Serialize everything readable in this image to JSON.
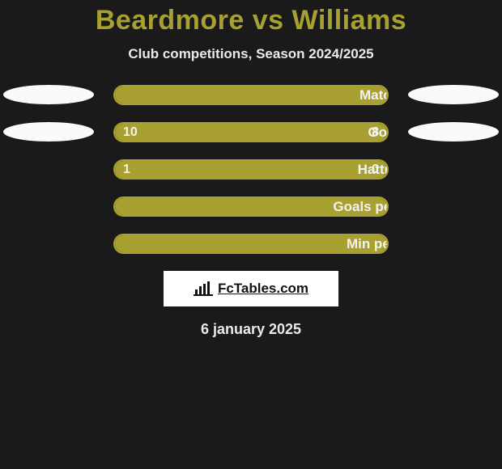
{
  "title": "Beardmore vs Williams",
  "subtitle": "Club competitions, Season 2024/2025",
  "date": "6 january 2025",
  "brand": "FcTables.com",
  "colors": {
    "accent": "#a8a030",
    "background": "#1a1a1a",
    "ellipse": "#fafafa",
    "brand_box_bg": "#ffffff",
    "text_light": "#eaeaea"
  },
  "rows": [
    {
      "label": "Matches",
      "left_pct": 100,
      "right_pct": 0,
      "left_val": "",
      "right_val": "",
      "show_ellipses": true
    },
    {
      "label": "Goals",
      "left_pct": 56,
      "right_pct": 44,
      "left_val": "10",
      "right_val": "8",
      "show_ellipses": true
    },
    {
      "label": "Hattricks",
      "left_pct": 77,
      "right_pct": 23,
      "left_val": "1",
      "right_val": "0",
      "show_ellipses": false
    },
    {
      "label": "Goals per match",
      "left_pct": 100,
      "right_pct": 0,
      "left_val": "",
      "right_val": "",
      "show_ellipses": false
    },
    {
      "label": "Min per goal",
      "left_pct": 100,
      "right_pct": 0,
      "left_val": "",
      "right_val": "",
      "show_ellipses": false
    }
  ]
}
